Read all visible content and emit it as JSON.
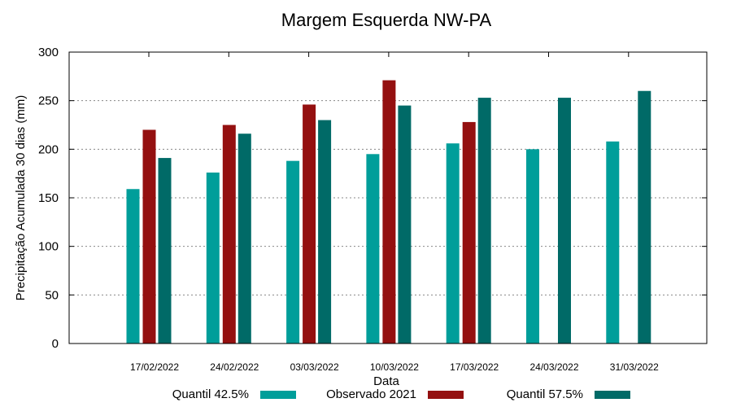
{
  "chart_data": {
    "type": "bar",
    "title": "Margem Esquerda NW-PA",
    "xlabel": "Data",
    "ylabel": "Precipitação Acumulada 30 dias (mm)",
    "ylim": [
      0,
      300
    ],
    "yticks": [
      "0",
      "50",
      "100",
      "150",
      "200",
      "250",
      "300"
    ],
    "grid": true,
    "legend_position": "bottom",
    "categories": [
      "17/02/2022",
      "24/02/2022",
      "03/03/2022",
      "10/03/2022",
      "17/03/2022",
      "24/03/2022",
      "31/03/2022"
    ],
    "series": [
      {
        "name": "Quantil 42.5%",
        "color": "#009e9a",
        "values": [
          159,
          176,
          188,
          195,
          206,
          200,
          208
        ]
      },
      {
        "name": "Observado 2021",
        "color": "#941010",
        "values": [
          220,
          225,
          246,
          271,
          228,
          null,
          null
        ]
      },
      {
        "name": "Quantil 57.5%",
        "color": "#006a67",
        "values": [
          191,
          216,
          230,
          245,
          253,
          253,
          260
        ]
      }
    ]
  }
}
